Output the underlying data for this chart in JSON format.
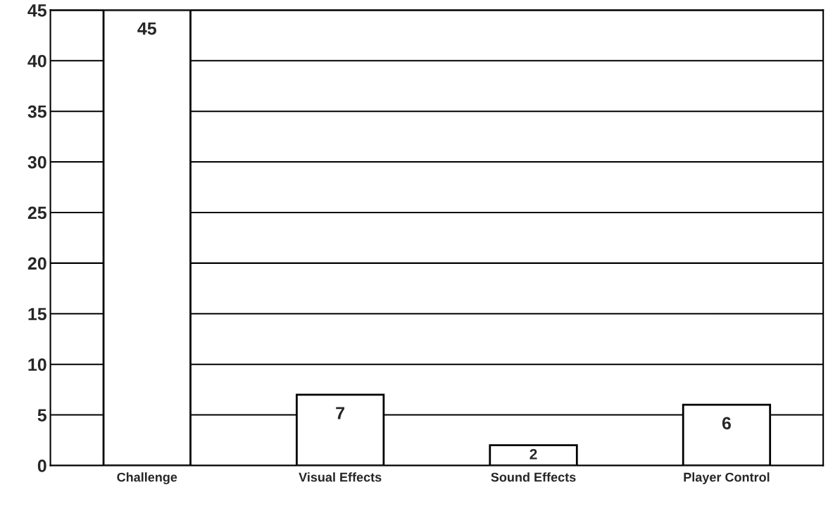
{
  "chart_data": {
    "type": "bar",
    "categories": [
      "Challenge",
      "Visual Effects",
      "Sound Effects",
      "Player Control"
    ],
    "values": [
      45,
      7,
      2,
      6
    ],
    "color": "#ffffff",
    "ylim": [
      0,
      45
    ],
    "yticks": [
      0,
      5,
      10,
      15,
      20,
      25,
      30,
      35,
      40,
      45
    ],
    "grid": "y",
    "data_labels": true
  }
}
